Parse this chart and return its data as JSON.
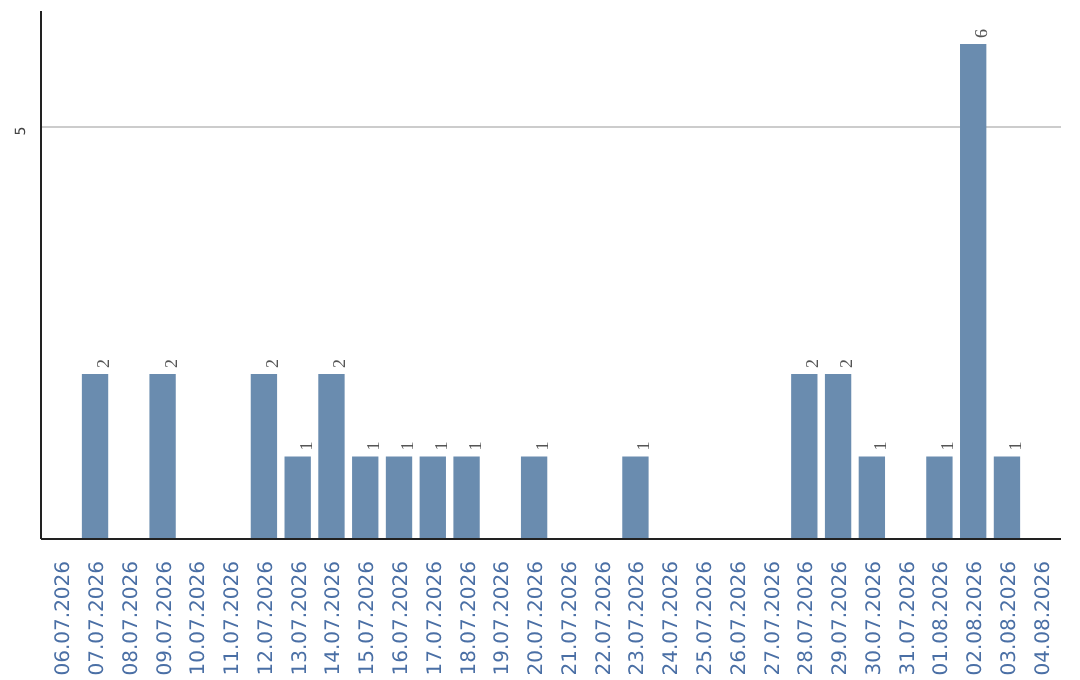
{
  "chart_data": {
    "type": "bar",
    "categories": [
      "06.07.2026",
      "07.07.2026",
      "08.07.2026",
      "09.07.2026",
      "10.07.2026",
      "11.07.2026",
      "12.07.2026",
      "13.07.2026",
      "14.07.2026",
      "15.07.2026",
      "16.07.2026",
      "17.07.2026",
      "18.07.2026",
      "19.07.2026",
      "20.07.2026",
      "21.07.2026",
      "22.07.2026",
      "23.07.2026",
      "24.07.2026",
      "25.07.2026",
      "26.07.2026",
      "27.07.2026",
      "28.07.2026",
      "29.07.2026",
      "30.07.2026",
      "31.07.2026",
      "01.08.2026",
      "02.08.2026",
      "03.08.2026",
      "04.08.2026"
    ],
    "values": [
      0,
      2,
      0,
      2,
      0,
      0,
      2,
      1,
      2,
      1,
      1,
      1,
      1,
      0,
      1,
      0,
      0,
      1,
      0,
      0,
      0,
      0,
      2,
      2,
      1,
      0,
      1,
      6,
      1,
      0
    ],
    "value_labels": [
      null,
      "2",
      null,
      "2",
      null,
      null,
      "2",
      "1",
      "2",
      "1",
      "1",
      "1",
      "1",
      null,
      "1",
      null,
      null,
      "1",
      null,
      null,
      null,
      null,
      "2",
      "2",
      "1",
      null,
      "1",
      "6",
      "1",
      null
    ],
    "color": "#6a8caf",
    "ylim": [
      0,
      6.4
    ],
    "yticks": [
      5
    ],
    "grid": "y"
  }
}
